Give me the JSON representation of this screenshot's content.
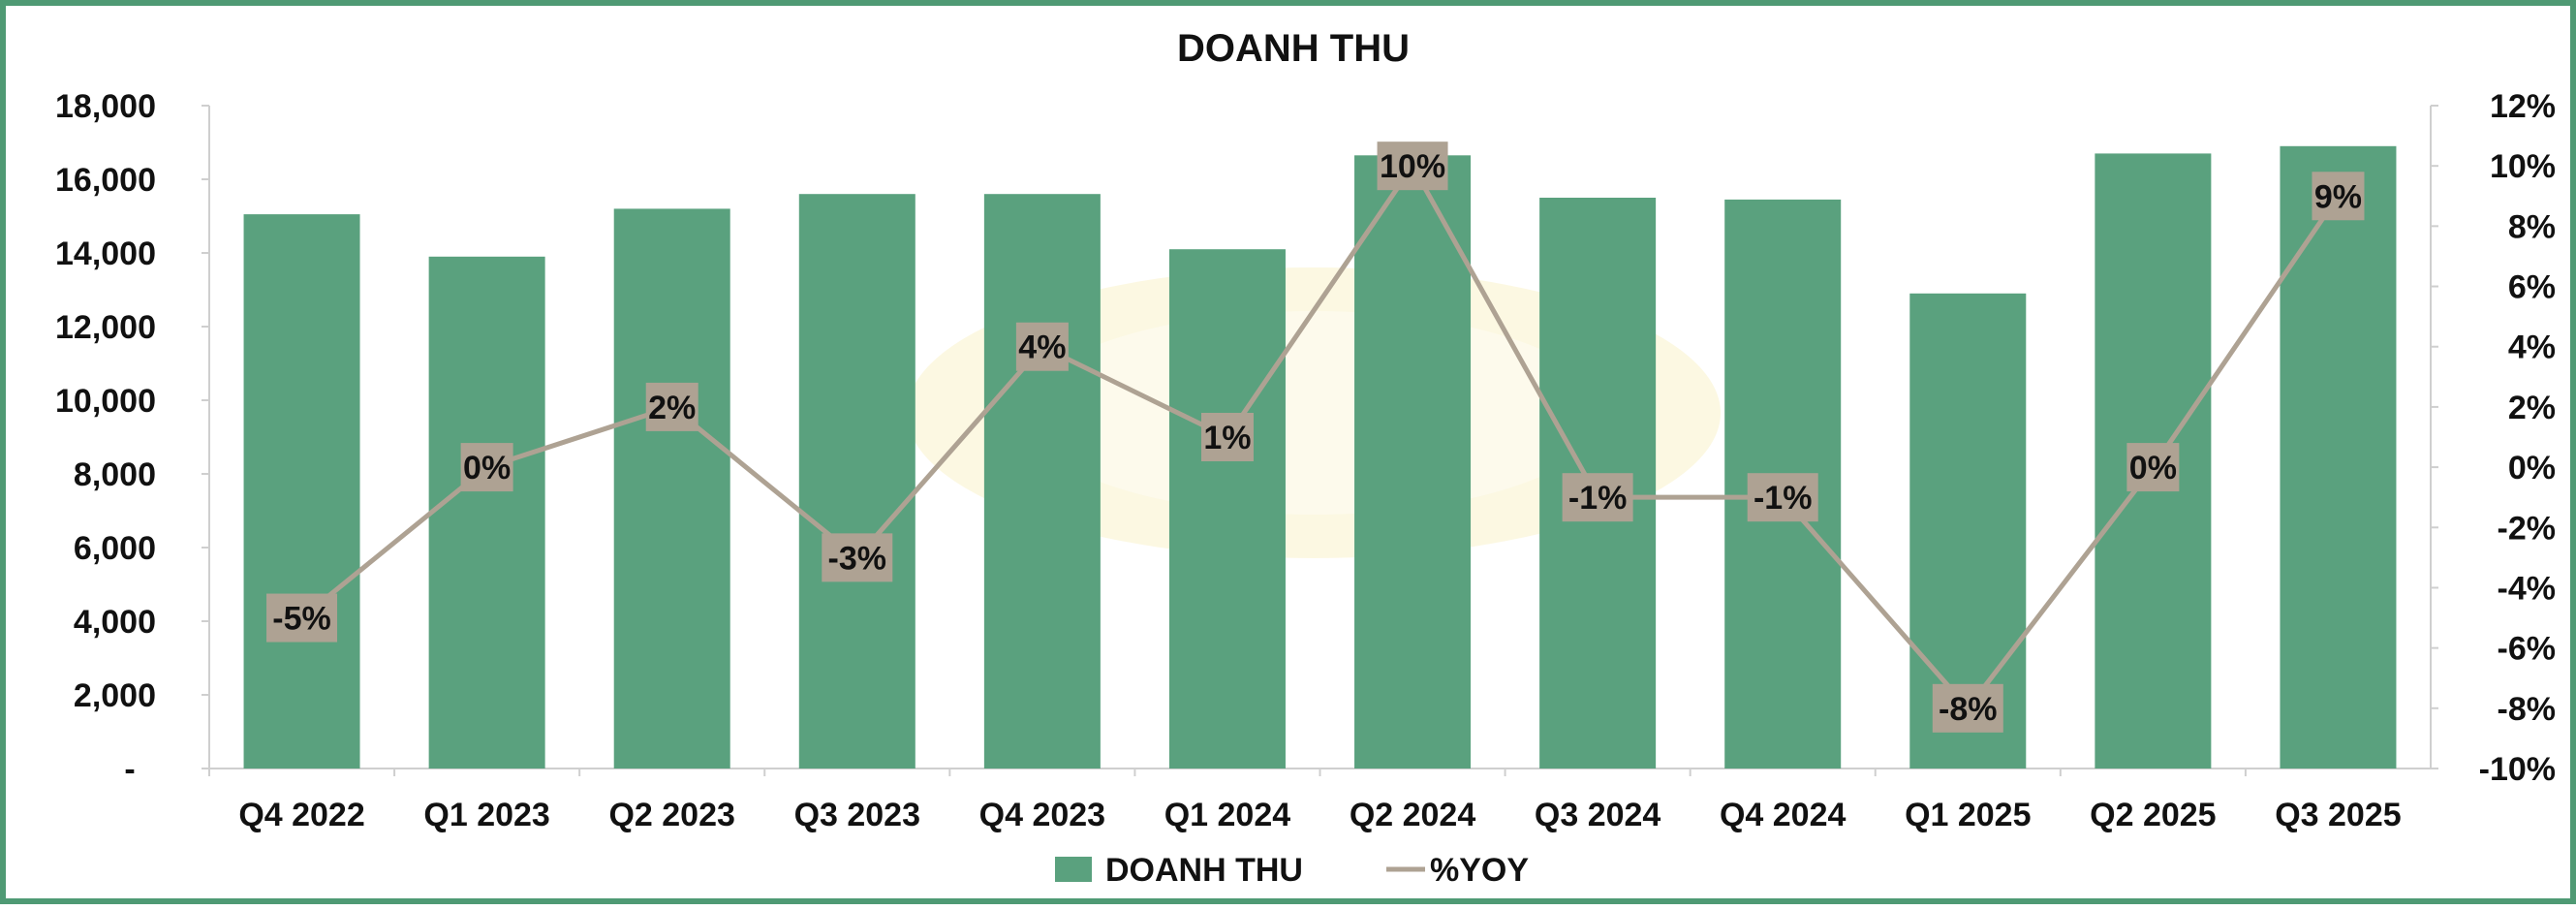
{
  "colors": {
    "bar": "#5aa17e",
    "line": "#aea293",
    "label_bg": "#aea293",
    "frame": "#4f9a74",
    "axis": "#cfcfcf"
  },
  "chart_data": {
    "type": "bar",
    "title": "DOANH THU",
    "categories": [
      "Q4 2022",
      "Q1 2023",
      "Q2 2023",
      "Q3 2023",
      "Q4 2023",
      "Q1 2024",
      "Q2 2024",
      "Q3 2024",
      "Q4 2024",
      "Q1 2025",
      "Q2 2025",
      "Q3 2025"
    ],
    "series": [
      {
        "name": "DOANH THU",
        "type": "bar",
        "axis": "left",
        "values": [
          15050,
          13900,
          15200,
          15600,
          15600,
          14100,
          16650,
          15500,
          15450,
          12900,
          16700,
          16900
        ]
      },
      {
        "name": "%YOY",
        "type": "line",
        "axis": "right",
        "values": [
          -5,
          0,
          2,
          -3,
          4,
          1,
          10,
          -1,
          -1,
          -8,
          0,
          9
        ],
        "labels": [
          "-5%",
          "0%",
          "2%",
          "-3%",
          "4%",
          "1%",
          "10%",
          "-1%",
          "-1%",
          "-8%",
          "0%",
          "9%"
        ]
      }
    ],
    "y_left": {
      "range": [
        0,
        18000
      ],
      "ticks": [
        0,
        2000,
        4000,
        6000,
        8000,
        10000,
        12000,
        14000,
        16000,
        18000
      ],
      "tick_labels": [
        "-",
        "2,000",
        "4,000",
        "6,000",
        "8,000",
        "10,000",
        "12,000",
        "14,000",
        "16,000",
        "18,000"
      ]
    },
    "y_right": {
      "range": [
        -10,
        12
      ],
      "ticks": [
        -10,
        -8,
        -6,
        -4,
        -2,
        0,
        2,
        4,
        6,
        8,
        10,
        12
      ],
      "tick_labels": [
        "-10%",
        "-8%",
        "-6%",
        "-4%",
        "-2%",
        "0%",
        "2%",
        "4%",
        "6%",
        "8%",
        "10%",
        "12%"
      ]
    },
    "grid": false,
    "legend": "bottom-center",
    "legend_entries": [
      "DOANH THU",
      "%YOY"
    ]
  }
}
